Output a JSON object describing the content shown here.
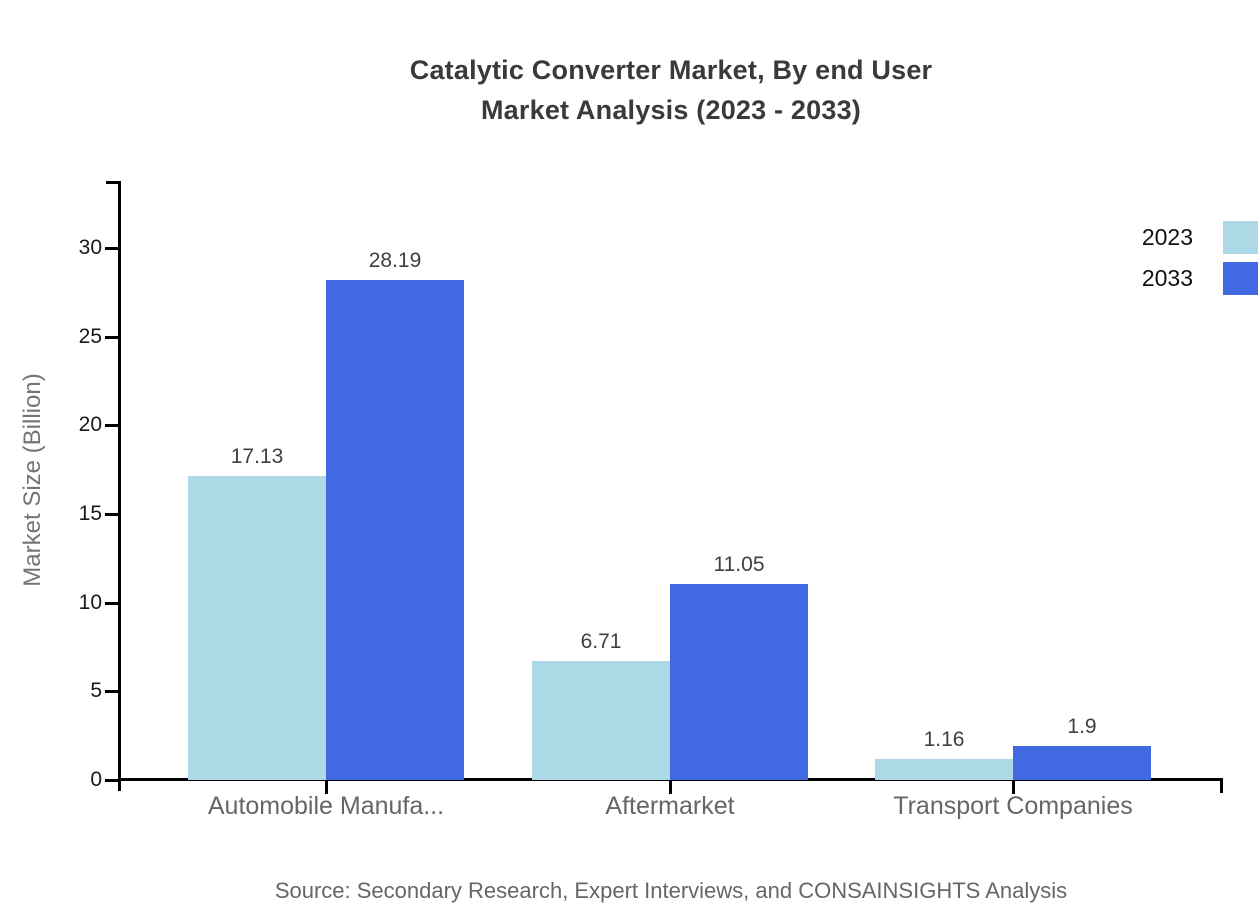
{
  "chart_data": {
    "type": "bar",
    "title": "Catalytic Converter Market, By end User Market Analysis (2023 - 2033)",
    "title_lines": [
      "Catalytic Converter Market, By end User",
      "Market Analysis (2023 - 2033)"
    ],
    "categories": [
      "Automobile Manufa...",
      "Aftermarket",
      "Transport Companies"
    ],
    "series": [
      {
        "name": "2023",
        "color": "#ADD8E6",
        "values": [
          17.13,
          6.71,
          1.16
        ]
      },
      {
        "name": "2033",
        "color": "#4169E1",
        "values": [
          28.19,
          11.05,
          1.9
        ]
      }
    ],
    "xlabel": "",
    "ylabel": "Market Size (Billion)",
    "yticks": [
      0,
      5,
      10,
      15,
      20,
      25,
      30
    ],
    "ylim": [
      0,
      33.8
    ],
    "grid": false,
    "legend_position": "top-right",
    "value_labels": true,
    "source": "Source: Secondary Research, Expert Interviews, and CONSAINSIGHTS Analysis",
    "colors": {
      "background": "#ffffff",
      "axis": "#000000",
      "title_text": "#3a3a3a",
      "value_label_text": "#404040",
      "tick_label_text": "#1a1a1a",
      "category_text": "#666666",
      "ylabel_text": "#757575",
      "source_text": "#666666",
      "legend_text": "#111111"
    }
  }
}
